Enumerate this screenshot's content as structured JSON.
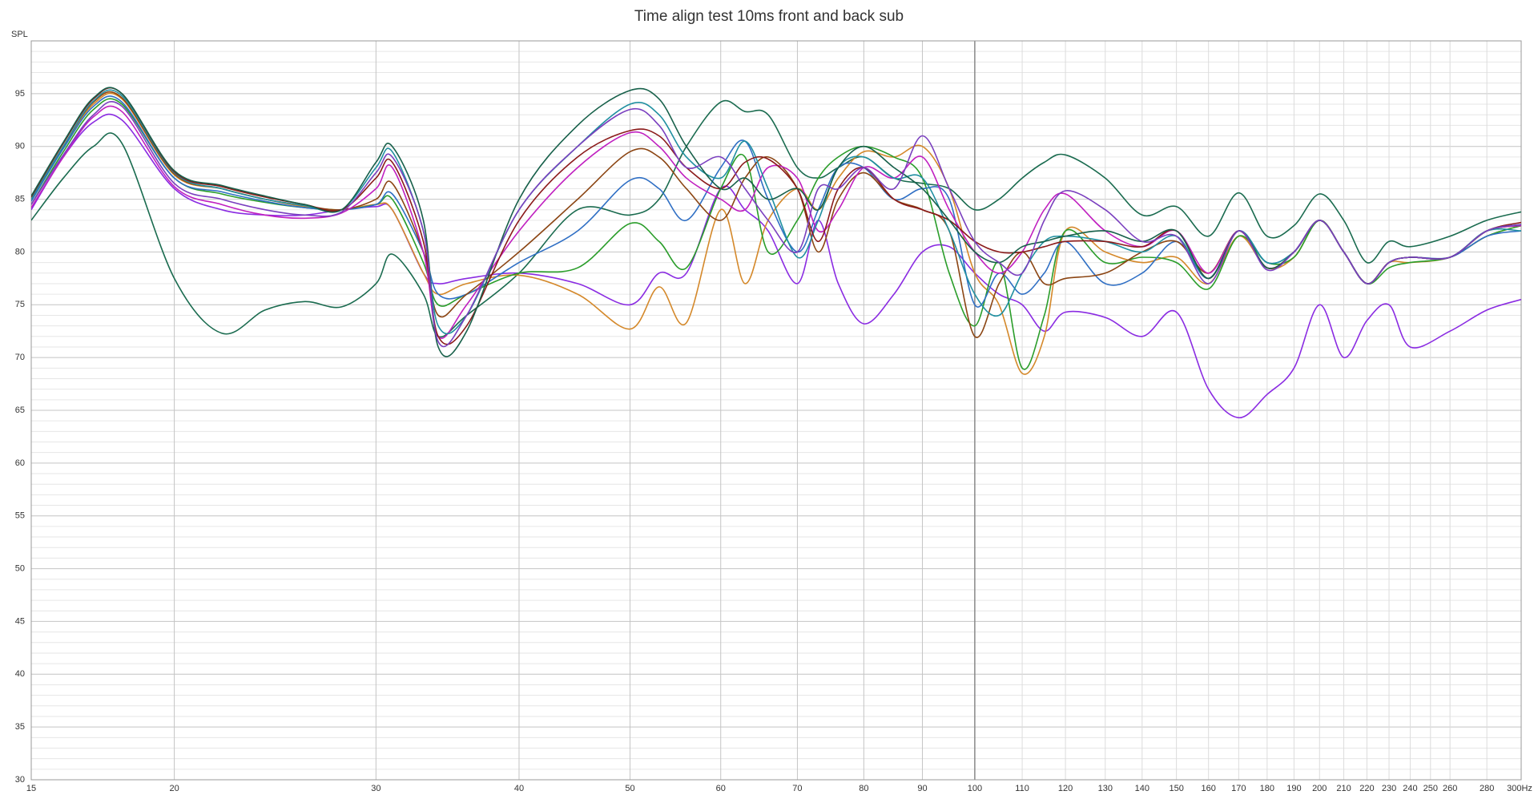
{
  "chart_data": {
    "type": "line",
    "title": "Time align test 10ms front and back sub",
    "y_label": "SPL",
    "xscale": "log",
    "grid": true,
    "xlim": [
      15,
      300
    ],
    "ylim": [
      30,
      100
    ],
    "xticks": [
      15,
      20,
      30,
      40,
      50,
      60,
      70,
      80,
      90,
      100,
      110,
      120,
      130,
      140,
      150,
      160,
      170,
      180,
      190,
      200,
      210,
      220,
      230,
      240,
      250,
      260,
      280,
      {
        "value": 300,
        "label": "300Hz"
      }
    ],
    "yticks": [
      30,
      35,
      40,
      45,
      50,
      55,
      60,
      65,
      70,
      75,
      80,
      85,
      90,
      95
    ],
    "x": [
      15,
      16,
      17,
      18,
      20,
      22,
      24,
      26,
      28,
      30,
      31,
      33,
      34,
      36,
      40,
      45,
      50,
      53,
      56,
      60,
      63,
      66,
      70,
      73,
      76,
      80,
      85,
      90,
      95,
      100,
      105,
      110,
      115,
      120,
      130,
      140,
      150,
      160,
      170,
      180,
      190,
      200,
      210,
      220,
      230,
      240,
      260,
      280,
      300
    ],
    "series": [
      {
        "color": "#1a6b4f",
        "values": [
          83,
          87,
          90,
          90.3,
          77.5,
          72.3,
          74.5,
          75.3,
          74.8,
          77,
          79.8,
          76,
          72,
          74,
          78,
          84,
          83.5,
          85,
          90,
          94.2,
          93.3,
          93,
          88,
          87,
          88,
          89,
          87,
          86.5,
          86,
          84,
          85,
          87,
          88.5,
          89.2,
          87,
          83.5,
          84.3,
          81.5,
          85.6,
          81.5,
          82.5,
          85.5,
          83,
          79,
          81,
          80.5,
          81.5,
          83,
          83.8
        ]
      },
      {
        "color": "#8a2be2",
        "values": [
          84,
          89,
          92.3,
          92.5,
          86,
          84,
          83.5,
          83.5,
          84,
          84.3,
          84,
          78,
          77,
          77.5,
          78,
          77,
          75,
          78,
          78,
          86,
          84,
          82,
          77,
          83,
          77,
          73.2,
          76,
          80,
          80.5,
          78,
          76,
          75,
          72.5,
          74.3,
          73.8,
          72,
          74.3,
          67,
          64.3,
          66.5,
          69,
          75,
          70,
          73.5,
          75,
          71,
          72.5,
          74.5,
          75.5
        ]
      },
      {
        "color": "#d4882a",
        "values": [
          85,
          90,
          94,
          94.5,
          87.3,
          86,
          85,
          84.3,
          84,
          84.5,
          84,
          78,
          76,
          77,
          77.8,
          76,
          72.7,
          76.7,
          73.3,
          84,
          77,
          83,
          86,
          84,
          87,
          89.5,
          89,
          90,
          86,
          78,
          75,
          68.5,
          72,
          82,
          80,
          79,
          79.5,
          77,
          81.5,
          78.5,
          79.5,
          83,
          80,
          77,
          79,
          79,
          79.5,
          81.5,
          82.5
        ]
      },
      {
        "color": "#2a9d2a",
        "values": [
          84.5,
          89.5,
          93.5,
          94,
          87,
          85.5,
          84.7,
          84.2,
          84,
          84.5,
          85,
          79,
          75,
          76,
          78,
          78.5,
          82.7,
          81,
          78.5,
          86,
          89,
          80,
          83,
          87,
          89,
          90,
          89,
          87,
          78,
          73,
          79,
          69,
          74,
          82,
          79,
          79.5,
          79,
          76.5,
          81.5,
          79,
          79.5,
          83,
          80,
          77,
          78.5,
          79,
          79.5,
          81.5,
          82.5
        ]
      },
      {
        "color": "#2f6fc4",
        "values": [
          84.8,
          89.8,
          93.8,
          94.2,
          87,
          85.7,
          84.8,
          84.2,
          84,
          84.5,
          85.5,
          80,
          76,
          76,
          79,
          82,
          86.8,
          86,
          83,
          88,
          90.5,
          85,
          80,
          84,
          88,
          88,
          85,
          86,
          85,
          75,
          78,
          76,
          78,
          81,
          77,
          78,
          81,
          77.5,
          82,
          79,
          80,
          83,
          80,
          77,
          79,
          79.5,
          79.5,
          81.5,
          82
        ]
      },
      {
        "color": "#8b4513",
        "values": [
          85,
          90,
          94.2,
          94.6,
          87.4,
          86,
          85,
          84.4,
          84,
          85,
          86.5,
          80,
          74,
          76,
          80,
          85,
          89.5,
          89,
          86,
          83,
          87,
          89,
          86,
          80,
          85,
          87.5,
          85,
          84,
          82,
          72,
          77,
          80,
          77,
          77.5,
          78,
          80,
          81,
          78,
          82,
          78.5,
          80,
          83,
          80,
          77,
          79,
          79.5,
          79.5,
          82,
          82.5
        ]
      },
      {
        "color": "#c020c0",
        "values": [
          84.2,
          89,
          92.8,
          93.3,
          86.2,
          84.5,
          83.5,
          83.2,
          83.7,
          86,
          88,
          80,
          72,
          75,
          82,
          88,
          91.3,
          90,
          87,
          85,
          84,
          88,
          87,
          82,
          84,
          88,
          87,
          89,
          84,
          80,
          78,
          80,
          84,
          85.5,
          82,
          80.5,
          82,
          78,
          82,
          78.5,
          80,
          83,
          80,
          77,
          79,
          79.5,
          79.5,
          82,
          82.5
        ]
      },
      {
        "color": "#1f8fa0",
        "values": [
          85,
          90,
          94.3,
          94.8,
          87.5,
          86,
          85,
          84.4,
          84,
          88,
          89.5,
          82,
          73,
          74,
          84,
          90,
          94,
          93,
          89,
          87,
          90.5,
          86,
          79.5,
          83,
          88,
          89,
          87,
          87,
          82,
          76,
          74,
          78,
          81,
          81.5,
          81,
          80,
          81.5,
          77.5,
          82,
          79,
          80,
          83,
          80,
          77,
          79,
          79.5,
          79.5,
          82,
          82
        ]
      },
      {
        "color": "#8b1a1a",
        "values": [
          85.2,
          90.3,
          94.5,
          95,
          87.6,
          86.2,
          85.2,
          84.5,
          84,
          87,
          88.5,
          81,
          72,
          73,
          83,
          89,
          91.5,
          91,
          88,
          86,
          88.5,
          88.8,
          86,
          81,
          86,
          88,
          85,
          84,
          83,
          81,
          80,
          80,
          80.5,
          81,
          81,
          80.5,
          82,
          77.5,
          82,
          78.5,
          80,
          83,
          80,
          77,
          79,
          79.5,
          79.5,
          82,
          82.8
        ]
      },
      {
        "color": "#17604a",
        "values": [
          85.3,
          90.4,
          94.6,
          95,
          87.7,
          86.3,
          85.3,
          84.5,
          84,
          88.5,
          90,
          83,
          71,
          72.5,
          85,
          92,
          95.3,
          94.5,
          90,
          86,
          87,
          85,
          86,
          84,
          88,
          90,
          88,
          86,
          83,
          80,
          79,
          80.5,
          81,
          81.5,
          82,
          81,
          82,
          77.5,
          82,
          78.5,
          80,
          83,
          80,
          77,
          79,
          79.5,
          79.5,
          82,
          82.6
        ]
      },
      {
        "color": "#7a3fbf",
        "values": [
          84.5,
          89.2,
          93,
          93.8,
          86.5,
          85,
          84,
          83.5,
          83.8,
          87.5,
          89,
          82,
          71.5,
          74,
          84,
          90,
          93.5,
          92,
          88,
          89,
          86,
          83,
          80,
          86,
          86,
          88,
          86,
          91,
          86,
          81,
          79,
          78,
          83,
          85.8,
          84,
          81,
          81.5,
          77,
          82,
          78.3,
          80,
          83,
          80,
          77,
          79,
          79.5,
          79.5,
          82,
          82.6
        ]
      }
    ]
  }
}
